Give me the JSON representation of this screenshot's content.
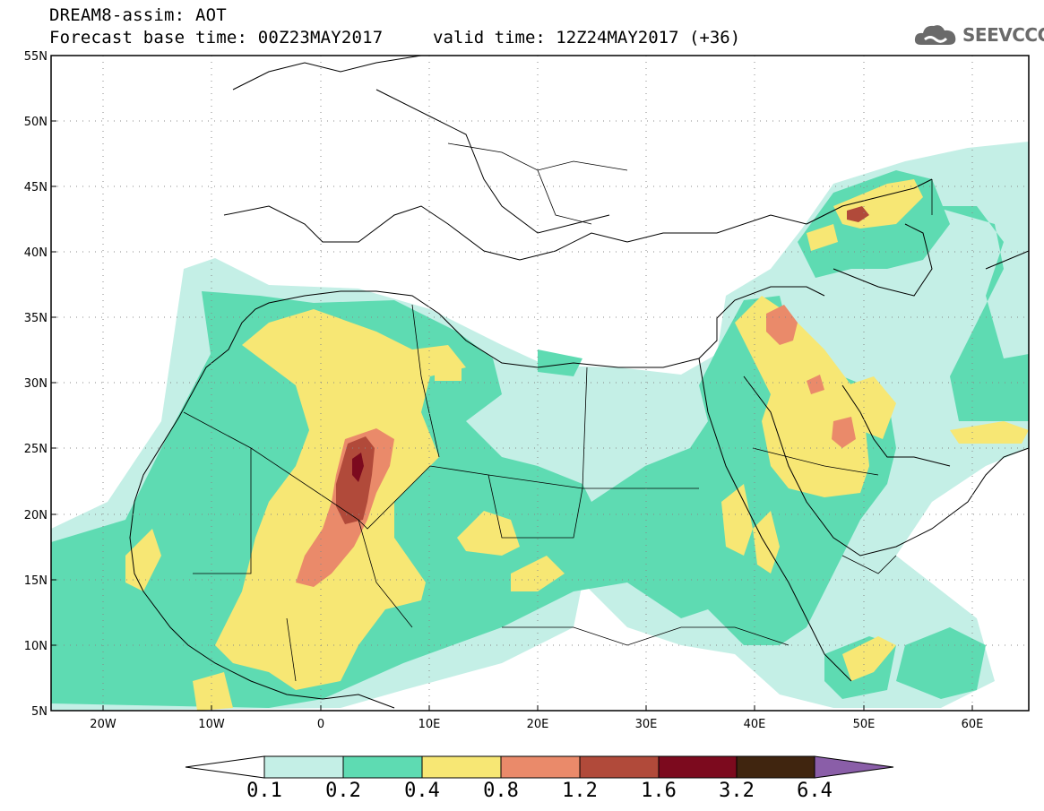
{
  "header": {
    "title_line1": "DREAM8-assim: AOT",
    "title_line2": "Forecast base time: 00Z23MAY2017",
    "valid_time": "valid time: 12Z24MAY2017 (+36)",
    "logo_text": "SEEVCCC",
    "logo_icon": "cloud-icon"
  },
  "map": {
    "projection": "lat-lon",
    "lon_range": [
      -25,
      65
    ],
    "lat_range": [
      5,
      55
    ],
    "lat_ticks": [
      "55N",
      "50N",
      "45N",
      "40N",
      "35N",
      "30N",
      "25N",
      "20N",
      "15N",
      "10N",
      "5N"
    ],
    "lon_ticks": [
      "20W",
      "10W",
      "0",
      "10E",
      "20E",
      "30E",
      "40E",
      "50E",
      "60E"
    ],
    "grid": "dotted"
  },
  "colorbar": {
    "labels": [
      "0.1",
      "0.2",
      "0.4",
      "0.8",
      "1.2",
      "1.6",
      "3.2",
      "6.4"
    ],
    "colors": [
      "#ffffff",
      "#c4efe6",
      "#5edbb2",
      "#f7e774",
      "#ea8a6a",
      "#b14a3a",
      "#7c0a1e",
      "#40250f",
      "#8a5ea8"
    ]
  },
  "shading": {
    "color_01_02": "#c4efe6",
    "color_02_04": "#5edbb2",
    "color_04_08": "#f7e774",
    "color_08_12": "#ea8a6a",
    "color_12_16": "#b14a3a",
    "color_16_32": "#7c0a1e"
  }
}
